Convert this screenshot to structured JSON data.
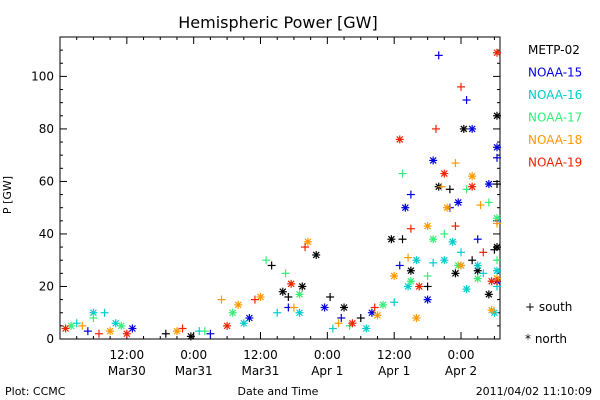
{
  "chart_data": {
    "type": "scatter",
    "title": "Hemispheric Power [GW]",
    "xlabel": "Date and Time",
    "ylabel": "P [GW]",
    "xlim_hours": [
      0,
      79
    ],
    "ylim": [
      0,
      115
    ],
    "grid": false,
    "legend_placement": "right",
    "y_ticks": [
      0,
      20,
      40,
      60,
      80,
      100
    ],
    "x_ticks": [
      {
        "hour": 12,
        "line1": "12:00",
        "line2": "Mar30"
      },
      {
        "hour": 24,
        "line1": "0:00",
        "line2": "Mar31"
      },
      {
        "hour": 36,
        "line1": "12:00",
        "line2": "Mar31"
      },
      {
        "hour": 48,
        "line1": "0:00",
        "line2": "Apr 1"
      },
      {
        "hour": 60,
        "line1": "12:00",
        "line2": "Apr 1"
      },
      {
        "hour": 72,
        "line1": "0:00",
        "line2": "Apr 2"
      }
    ],
    "series": [
      {
        "name": "METP-02",
        "color": "#000000",
        "points": [
          {
            "h": 19,
            "y": 2,
            "m": "+"
          },
          {
            "h": 23.5,
            "y": 1,
            "m": "*"
          },
          {
            "h": 38,
            "y": 28,
            "m": "+"
          },
          {
            "h": 40,
            "y": 18,
            "m": "*"
          },
          {
            "h": 41,
            "y": 16,
            "m": "+"
          },
          {
            "h": 43.5,
            "y": 20,
            "m": "*"
          },
          {
            "h": 46,
            "y": 32,
            "m": "*"
          },
          {
            "h": 48.5,
            "y": 16,
            "m": "+"
          },
          {
            "h": 51,
            "y": 12,
            "m": "*"
          },
          {
            "h": 54,
            "y": 8,
            "m": "+"
          },
          {
            "h": 59.5,
            "y": 38,
            "m": "*"
          },
          {
            "h": 61.5,
            "y": 38,
            "m": "+"
          },
          {
            "h": 63,
            "y": 26,
            "m": "*"
          },
          {
            "h": 66,
            "y": 20,
            "m": "+"
          },
          {
            "h": 68,
            "y": 58,
            "m": "*"
          },
          {
            "h": 70,
            "y": 57,
            "m": "+"
          },
          {
            "h": 71,
            "y": 25,
            "m": "*"
          },
          {
            "h": 72.5,
            "y": 80,
            "m": "*"
          },
          {
            "h": 74,
            "y": 30,
            "m": "+"
          },
          {
            "h": 75,
            "y": 26,
            "m": "*"
          },
          {
            "h": 77,
            "y": 17,
            "m": "*"
          },
          {
            "h": 78,
            "y": 34,
            "m": "+"
          },
          {
            "h": 79,
            "y": 85,
            "m": "*"
          },
          {
            "h": 79.5,
            "y": 59,
            "m": "+"
          },
          {
            "h": 81,
            "y": 35,
            "m": "*"
          }
        ]
      },
      {
        "name": "NOAA-15",
        "color": "#0000dd",
        "points": [
          {
            "h": 5,
            "y": 3,
            "m": "+"
          },
          {
            "h": 13,
            "y": 4,
            "m": "*"
          },
          {
            "h": 27,
            "y": 2,
            "m": "+"
          },
          {
            "h": 34,
            "y": 8,
            "m": "*"
          },
          {
            "h": 41,
            "y": 12,
            "m": "+"
          },
          {
            "h": 47.5,
            "y": 12,
            "m": "*"
          },
          {
            "h": 50.5,
            "y": 8,
            "m": "+"
          },
          {
            "h": 56,
            "y": 10,
            "m": "*"
          },
          {
            "h": 61,
            "y": 28,
            "m": "+"
          },
          {
            "h": 62,
            "y": 50,
            "m": "*"
          },
          {
            "h": 63,
            "y": 55,
            "m": "+"
          },
          {
            "h": 66,
            "y": 15,
            "m": "*"
          },
          {
            "h": 67,
            "y": 68,
            "m": "*"
          },
          {
            "h": 68,
            "y": 108,
            "m": "+"
          },
          {
            "h": 70,
            "y": 50,
            "m": "+"
          },
          {
            "h": 71.5,
            "y": 52,
            "m": "*"
          },
          {
            "h": 73,
            "y": 91,
            "m": "+"
          },
          {
            "h": 74,
            "y": 80,
            "m": "*"
          },
          {
            "h": 75,
            "y": 38,
            "m": "+"
          },
          {
            "h": 77,
            "y": 59,
            "m": "*"
          },
          {
            "h": 79,
            "y": 45,
            "m": "+"
          },
          {
            "h": 80,
            "y": 73,
            "m": "*"
          },
          {
            "h": 81,
            "y": 69,
            "m": "+"
          },
          {
            "h": 82,
            "y": 22,
            "m": "*"
          }
        ]
      },
      {
        "name": "NOAA-16",
        "color": "#00cccc",
        "points": [
          {
            "h": 3,
            "y": 6,
            "m": "+"
          },
          {
            "h": 6,
            "y": 10,
            "m": "*"
          },
          {
            "h": 8,
            "y": 10,
            "m": "+"
          },
          {
            "h": 10,
            "y": 6,
            "m": "*"
          },
          {
            "h": 25,
            "y": 3,
            "m": "+"
          },
          {
            "h": 33,
            "y": 6,
            "m": "*"
          },
          {
            "h": 39,
            "y": 10,
            "m": "+"
          },
          {
            "h": 43,
            "y": 10,
            "m": "*"
          },
          {
            "h": 49,
            "y": 4,
            "m": "+"
          },
          {
            "h": 55,
            "y": 4,
            "m": "*"
          },
          {
            "h": 60,
            "y": 14,
            "m": "+"
          },
          {
            "h": 62.5,
            "y": 20,
            "m": "*"
          },
          {
            "h": 64,
            "y": 30,
            "m": "*"
          },
          {
            "h": 67,
            "y": 29,
            "m": "+"
          },
          {
            "h": 69,
            "y": 30,
            "m": "*"
          },
          {
            "h": 70.5,
            "y": 37,
            "m": "*"
          },
          {
            "h": 72,
            "y": 33,
            "m": "+"
          },
          {
            "h": 73,
            "y": 19,
            "m": "*"
          },
          {
            "h": 75,
            "y": 28,
            "m": "*"
          },
          {
            "h": 76,
            "y": 25,
            "m": "+"
          },
          {
            "h": 78,
            "y": 10,
            "m": "*"
          },
          {
            "h": 80.5,
            "y": 20,
            "m": "+"
          },
          {
            "h": 82,
            "y": 26,
            "m": "*"
          }
        ]
      },
      {
        "name": "NOAA-17",
        "color": "#33ee77",
        "points": [
          {
            "h": 2,
            "y": 5,
            "m": "*"
          },
          {
            "h": 6,
            "y": 8,
            "m": "+"
          },
          {
            "h": 11,
            "y": 5,
            "m": "*"
          },
          {
            "h": 26,
            "y": 3,
            "m": "+"
          },
          {
            "h": 31,
            "y": 10,
            "m": "*"
          },
          {
            "h": 37,
            "y": 30,
            "m": "+"
          },
          {
            "h": 40.5,
            "y": 25,
            "m": "+"
          },
          {
            "h": 43,
            "y": 17,
            "m": "*"
          },
          {
            "h": 52,
            "y": 5,
            "m": "+"
          },
          {
            "h": 58,
            "y": 13,
            "m": "*"
          },
          {
            "h": 61.5,
            "y": 63,
            "m": "+"
          },
          {
            "h": 63,
            "y": 22,
            "m": "*"
          },
          {
            "h": 66,
            "y": 24,
            "m": "+"
          },
          {
            "h": 67,
            "y": 38,
            "m": "*"
          },
          {
            "h": 69,
            "y": 40,
            "m": "+"
          },
          {
            "h": 71.5,
            "y": 28,
            "m": "*"
          },
          {
            "h": 73,
            "y": 57,
            "m": "+"
          },
          {
            "h": 75,
            "y": 23,
            "m": "*"
          },
          {
            "h": 77,
            "y": 52,
            "m": "+"
          },
          {
            "h": 79.5,
            "y": 46,
            "m": "*"
          },
          {
            "h": 81,
            "y": 30,
            "m": "+"
          }
        ]
      },
      {
        "name": "NOAA-18",
        "color": "#ff9900",
        "points": [
          {
            "h": 4,
            "y": 5,
            "m": "+"
          },
          {
            "h": 9,
            "y": 3,
            "m": "*"
          },
          {
            "h": 21,
            "y": 3,
            "m": "*"
          },
          {
            "h": 29,
            "y": 15,
            "m": "+"
          },
          {
            "h": 32,
            "y": 13,
            "m": "*"
          },
          {
            "h": 36,
            "y": 16,
            "m": "*"
          },
          {
            "h": 42,
            "y": 12,
            "m": "+"
          },
          {
            "h": 44.5,
            "y": 37,
            "m": "*"
          },
          {
            "h": 50,
            "y": 6,
            "m": "+"
          },
          {
            "h": 57,
            "y": 9,
            "m": "*"
          },
          {
            "h": 60,
            "y": 24,
            "m": "*"
          },
          {
            "h": 62.5,
            "y": 31,
            "m": "+"
          },
          {
            "h": 64,
            "y": 8,
            "m": "*"
          },
          {
            "h": 66,
            "y": 43,
            "m": "*"
          },
          {
            "h": 68.5,
            "y": 58,
            "m": "+"
          },
          {
            "h": 69.5,
            "y": 50,
            "m": "*"
          },
          {
            "h": 71,
            "y": 67,
            "m": "+"
          },
          {
            "h": 72,
            "y": 28,
            "m": "*"
          },
          {
            "h": 74,
            "y": 62,
            "m": "*"
          },
          {
            "h": 75.5,
            "y": 51,
            "m": "+"
          },
          {
            "h": 77.5,
            "y": 11,
            "m": "*"
          },
          {
            "h": 78.5,
            "y": 44,
            "m": "+"
          },
          {
            "h": 80,
            "y": 23,
            "m": "*"
          }
        ]
      },
      {
        "name": "NOAA-19",
        "color": "#ee2200",
        "points": [
          {
            "h": 1,
            "y": 4,
            "m": "*"
          },
          {
            "h": 7,
            "y": 2,
            "m": "+"
          },
          {
            "h": 12,
            "y": 2,
            "m": "*"
          },
          {
            "h": 22,
            "y": 4,
            "m": "+"
          },
          {
            "h": 30,
            "y": 5,
            "m": "*"
          },
          {
            "h": 35,
            "y": 15,
            "m": "+"
          },
          {
            "h": 41.5,
            "y": 21,
            "m": "*"
          },
          {
            "h": 44,
            "y": 35,
            "m": "+"
          },
          {
            "h": 52.5,
            "y": 6,
            "m": "*"
          },
          {
            "h": 56.5,
            "y": 12,
            "m": "+"
          },
          {
            "h": 61,
            "y": 76,
            "m": "*"
          },
          {
            "h": 63,
            "y": 42,
            "m": "+"
          },
          {
            "h": 64.5,
            "y": 20,
            "m": "*"
          },
          {
            "h": 67.5,
            "y": 80,
            "m": "+"
          },
          {
            "h": 69,
            "y": 63,
            "m": "*"
          },
          {
            "h": 71,
            "y": 43,
            "m": "+"
          },
          {
            "h": 72,
            "y": 96,
            "m": "+"
          },
          {
            "h": 74,
            "y": 58,
            "m": "*"
          },
          {
            "h": 76,
            "y": 33,
            "m": "+"
          },
          {
            "h": 77.5,
            "y": 22,
            "m": "*"
          },
          {
            "h": 79.5,
            "y": 109,
            "m": "*"
          },
          {
            "h": 80.5,
            "y": 22,
            "m": "+"
          }
        ]
      }
    ],
    "marker_key": {
      "plus": "+ south",
      "star": "* north"
    }
  },
  "footer": {
    "left": "Plot: CCMC",
    "right": "2011/04/02 11:10:09"
  }
}
